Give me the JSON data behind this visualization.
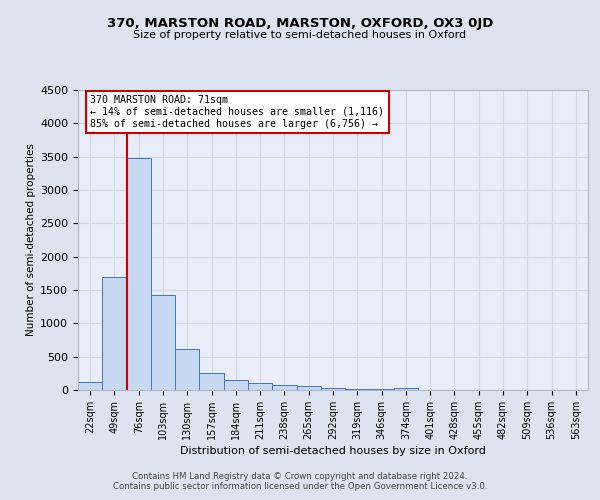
{
  "title": "370, MARSTON ROAD, MARSTON, OXFORD, OX3 0JD",
  "subtitle": "Size of property relative to semi-detached houses in Oxford",
  "xlabel": "Distribution of semi-detached houses by size in Oxford",
  "ylabel": "Number of semi-detached properties",
  "annotation_title": "370 MARSTON ROAD: 71sqm",
  "annotation_line1": "← 14% of semi-detached houses are smaller (1,116)",
  "annotation_line2": "85% of semi-detached houses are larger (6,756) →",
  "footer_line1": "Contains HM Land Registry data © Crown copyright and database right 2024.",
  "footer_line2": "Contains public sector information licensed under the Open Government Licence v3.0.",
  "categories": [
    "22sqm",
    "49sqm",
    "76sqm",
    "103sqm",
    "130sqm",
    "157sqm",
    "184sqm",
    "211sqm",
    "238sqm",
    "265sqm",
    "292sqm",
    "319sqm",
    "346sqm",
    "374sqm",
    "401sqm",
    "428sqm",
    "455sqm",
    "482sqm",
    "509sqm",
    "536sqm",
    "563sqm"
  ],
  "values": [
    120,
    1700,
    3480,
    1420,
    610,
    255,
    155,
    100,
    80,
    55,
    30,
    20,
    15,
    35,
    0,
    0,
    0,
    0,
    0,
    0,
    0
  ],
  "bar_color": "#c6d9f0",
  "bar_edge_color": "#4472c4",
  "property_bar_index": 2,
  "red_line_color": "#cc0000",
  "annotation_box_color": "#ffffff",
  "annotation_box_edge": "#cc0000",
  "grid_color": "#d0d8e8",
  "background_color": "#dde4f0",
  "plot_bg_color": "#e8edf8",
  "ylim": [
    0,
    4500
  ],
  "yticks": [
    0,
    500,
    1000,
    1500,
    2000,
    2500,
    3000,
    3500,
    4000,
    4500
  ]
}
